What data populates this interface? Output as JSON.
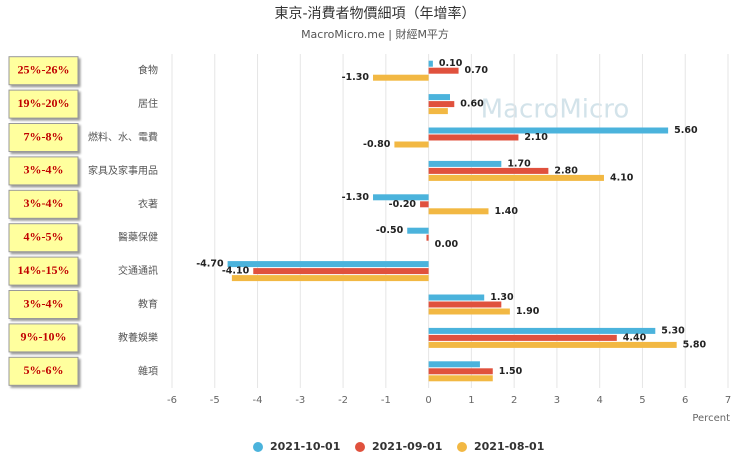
{
  "chart_data": {
    "type": "hbar",
    "title": "東京-消費者物價細項（年增率）",
    "subtitle": "MacroMicro.me | 財經M平方",
    "watermark": "MacroMicro",
    "x_label": "Percent",
    "categories": [
      "食物",
      "居住",
      "燃料、水、電費",
      "家具及家事用品",
      "衣著",
      "醫藥保健",
      "交通通訊",
      "教育",
      "教養娛樂",
      "雜項"
    ],
    "side_labels": [
      "25%-26%",
      "19%-20%",
      "7%-8%",
      "3%-4%",
      "3%-4%",
      "4%-5%",
      "14%-15%",
      "3%-4%",
      "9%-10%",
      "5%-6%"
    ],
    "series": [
      {
        "name": "2021-10-01",
        "color": "#4bb3dc",
        "values": [
          0.1,
          0.5,
          5.6,
          1.7,
          -1.3,
          -0.5,
          -4.7,
          1.3,
          5.3,
          1.2
        ],
        "value_labels": [
          "0.10",
          null,
          "5.60",
          "1.70",
          "-1.30",
          "-0.50",
          "-4.70",
          "1.30",
          "5.30",
          null
        ]
      },
      {
        "name": "2021-09-01",
        "color": "#e0513d",
        "values": [
          0.7,
          0.6,
          2.1,
          2.8,
          -0.2,
          -0.05,
          -4.1,
          1.7,
          4.4,
          1.5
        ],
        "value_labels": [
          "0.70",
          "0.60",
          "2.10",
          "2.80",
          "-0.20",
          null,
          "-4.10",
          null,
          "4.40",
          "1.50"
        ]
      },
      {
        "name": "2021-08-01",
        "color": "#f2b843",
        "values": [
          -1.3,
          0.45,
          -0.8,
          4.1,
          1.4,
          0,
          -4.6,
          1.9,
          5.8,
          1.5
        ],
        "value_labels": [
          "-1.30",
          null,
          "-0.80",
          "4.10",
          "1.40",
          "0.00",
          null,
          "1.90",
          "5.80",
          null
        ]
      }
    ],
    "xlim": [
      -6,
      7
    ],
    "xticks": [
      -6,
      -5,
      -4,
      -3,
      -2,
      -1,
      0,
      1,
      2,
      3,
      4,
      5,
      6,
      7
    ],
    "grid": true
  }
}
